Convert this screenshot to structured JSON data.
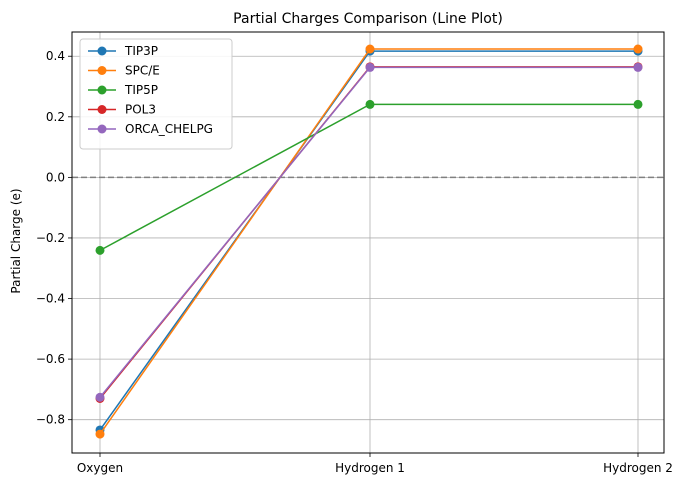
{
  "chart_data": {
    "type": "line",
    "title": "Partial Charges Comparison (Line Plot)",
    "xlabel": "",
    "ylabel": "Partial Charge (e)",
    "categories": [
      "Oxygen",
      "Hydrogen 1",
      "Hydrogen 2"
    ],
    "ylim": [
      -0.91,
      0.48
    ],
    "yticks": [
      -0.8,
      -0.6,
      -0.4,
      -0.2,
      0.0,
      0.2,
      0.4
    ],
    "ytick_labels": [
      "−0.8",
      "−0.6",
      "−0.4",
      "−0.2",
      "0.0",
      "0.2",
      "0.4"
    ],
    "grid": true,
    "reference_line": {
      "y": 0.0,
      "style": "dashed",
      "color": "#808080"
    },
    "legend_position": "top-left",
    "series": [
      {
        "name": "TIP3P",
        "color": "#1f77b4",
        "values": [
          -0.834,
          0.417,
          0.417
        ]
      },
      {
        "name": "SPC/E",
        "color": "#ff7f0e",
        "values": [
          -0.8476,
          0.4238,
          0.4238
        ]
      },
      {
        "name": "TIP5P",
        "color": "#2ca02c",
        "values": [
          -0.241,
          0.241,
          0.241
        ]
      },
      {
        "name": "POL3",
        "color": "#d62728",
        "values": [
          -0.73,
          0.365,
          0.365
        ]
      },
      {
        "name": "ORCA_CHELPG",
        "color": "#9467bd",
        "values": [
          -0.726,
          0.363,
          0.363
        ]
      }
    ]
  }
}
